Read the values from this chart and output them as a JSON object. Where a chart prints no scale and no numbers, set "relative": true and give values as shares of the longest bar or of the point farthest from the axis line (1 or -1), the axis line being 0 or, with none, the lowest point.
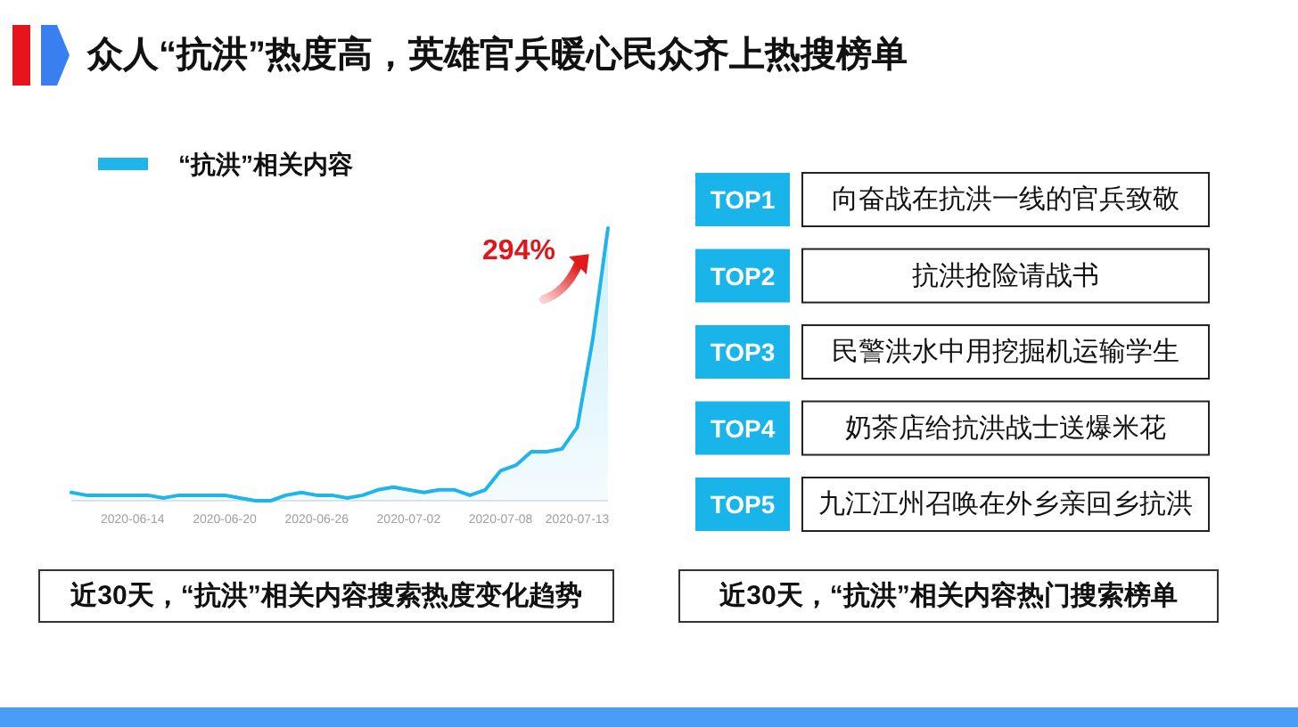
{
  "chart_data": [
    {
      "type": "area",
      "title": "众人“抗洪”热度高，英雄官兵暖心民众齐上热搜榜单",
      "relative": true,
      "x": [
        "2020-06-10",
        "2020-06-11",
        "2020-06-12",
        "2020-06-13",
        "2020-06-14",
        "2020-06-15",
        "2020-06-16",
        "2020-06-17",
        "2020-06-18",
        "2020-06-19",
        "2020-06-20",
        "2020-06-21",
        "2020-06-22",
        "2020-06-23",
        "2020-06-24",
        "2020-06-25",
        "2020-06-26",
        "2020-06-27",
        "2020-06-28",
        "2020-06-29",
        "2020-06-30",
        "2020-07-01",
        "2020-07-02",
        "2020-07-03",
        "2020-07-04",
        "2020-07-05",
        "2020-07-06",
        "2020-07-07",
        "2020-07-08",
        "2020-07-09",
        "2020-07-10",
        "2020-07-11",
        "2020-07-12",
        "2020-07-13",
        "2020-07-14",
        "2020-07-15"
      ],
      "xlim": [
        "2020-06-10",
        "2020-07-15"
      ],
      "xticks": [
        "2020-06-14",
        "2020-06-20",
        "2020-06-26",
        "2020-07-02",
        "2020-07-08",
        "2020-07-13"
      ],
      "series": [
        {
          "name": "“抗洪”相关内容",
          "color": "#1fb5e8",
          "values": [
            0.03,
            0.02,
            0.02,
            0.02,
            0.02,
            0.02,
            0.01,
            0.02,
            0.02,
            0.02,
            0.02,
            0.01,
            0,
            0,
            0.02,
            0.03,
            0.02,
            0.02,
            0.01,
            0.02,
            0.04,
            0.05,
            0.04,
            0.03,
            0.04,
            0.04,
            0.02,
            0.04,
            0.11,
            0.13,
            0.18,
            0.18,
            0.19,
            0.27,
            0.59,
            1
          ]
        }
      ],
      "legend": "top left",
      "annotations": [
        {
          "text": "294%",
          "x": "2020-07-15",
          "y": 1
        },
        "近30天，“抗洪”相关内容搜索热度变化趋势"
      ]
    },
    {
      "type": "other",
      "title": "近30天，“抗洪”相关内容热门搜索榜单",
      "categories": [
        "TOP1",
        "TOP2",
        "TOP3",
        "TOP4",
        "TOP5"
      ],
      "annotations": [
        "向奋战在抗洪一线的官兵致敬",
        "抗洪抢险请战书",
        "民警洪水中用挖掘机运输学生",
        "奶茶店给抗洪战士送爆米花",
        "九江江州召唤在外乡亲回乡抗洪"
      ]
    }
  ]
}
